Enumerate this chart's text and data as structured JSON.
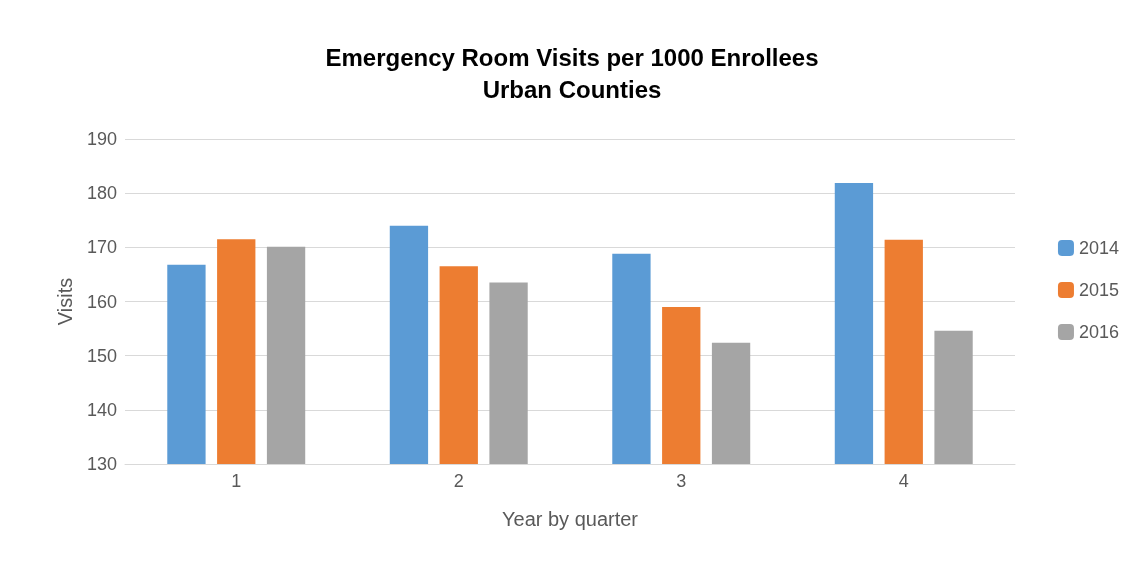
{
  "chart_data": {
    "type": "bar",
    "title": "Emergency Room Visits per 1000 Enrollees",
    "subtitle": "Urban Counties",
    "xlabel": "Year by quarter",
    "ylabel": "Visits",
    "categories": [
      "1",
      "2",
      "3",
      "4"
    ],
    "series": [
      {
        "name": "2014",
        "color": "#5b9bd5",
        "values": [
          166.8,
          174,
          168.8,
          181.9
        ]
      },
      {
        "name": "2015",
        "color": "#ed7d31",
        "values": [
          171.5,
          166.5,
          159,
          171.4
        ]
      },
      {
        "name": "2016",
        "color": "#a5a5a5",
        "values": [
          170.1,
          163.5,
          152.4,
          154.6
        ]
      }
    ],
    "ylim": [
      130,
      190
    ],
    "yticks": [
      130,
      140,
      150,
      160,
      170,
      180,
      190
    ],
    "grid": "y",
    "legend": "right"
  }
}
